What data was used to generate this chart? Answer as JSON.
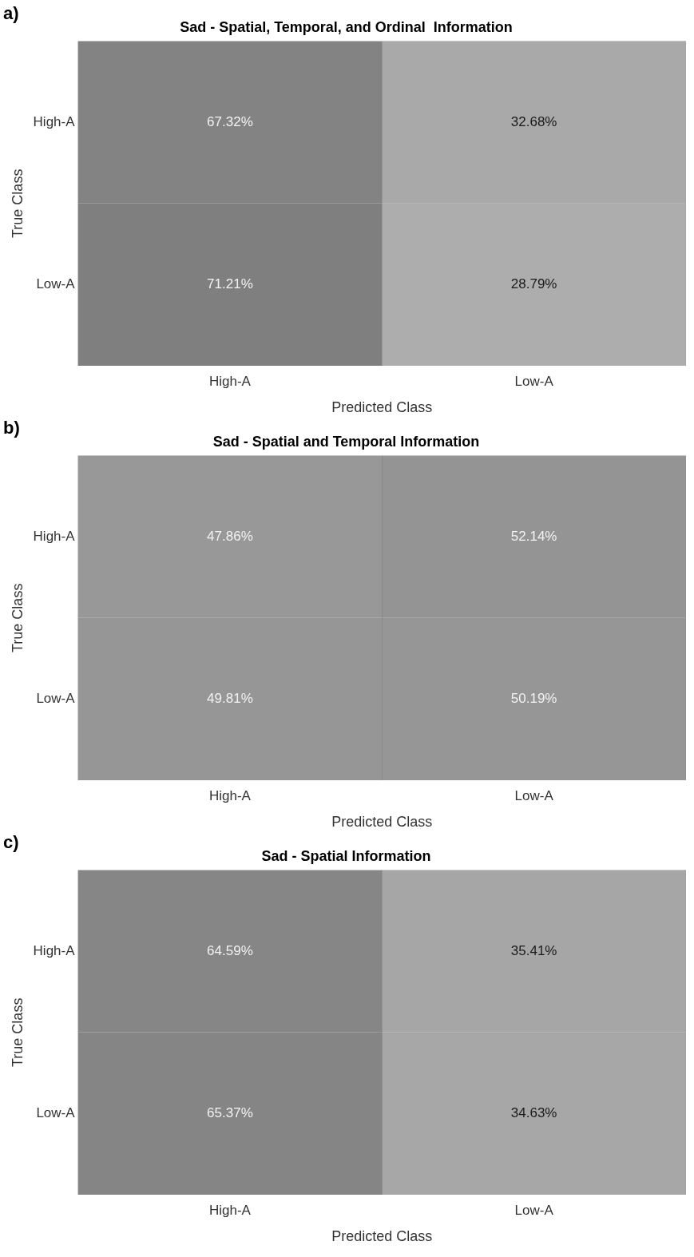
{
  "chart_data": [
    {
      "type": "heatmap",
      "title": "Sad - Spatial, Temporal, and Ordinal  Information",
      "xlabel": "Predicted Class",
      "ylabel": "True Class",
      "annotations": [
        "a)"
      ],
      "categories": [
        "High-A",
        "Low-A"
      ],
      "y_categories": [
        "High-A",
        "Low-A"
      ],
      "cells": [
        [
          67.32,
          32.68
        ],
        [
          71.21,
          28.79
        ]
      ],
      "cell_labels": [
        [
          "67.32%",
          "32.68%"
        ],
        [
          "71.21%",
          "28.79%"
        ]
      ]
    },
    {
      "type": "heatmap",
      "title": "Sad - Spatial and Temporal Information",
      "xlabel": "Predicted Class",
      "ylabel": "True Class",
      "annotations": [
        "b)"
      ],
      "categories": [
        "High-A",
        "Low-A"
      ],
      "y_categories": [
        "High-A",
        "Low-A"
      ],
      "cells": [
        [
          47.86,
          52.14
        ],
        [
          49.81,
          50.19
        ]
      ],
      "cell_labels": [
        [
          "47.86%",
          "52.14%"
        ],
        [
          "49.81%",
          "50.19%"
        ]
      ]
    },
    {
      "type": "heatmap",
      "title": "Sad - Spatial Information",
      "xlabel": "Predicted Class",
      "ylabel": "True Class",
      "annotations": [
        "c)"
      ],
      "categories": [
        "High-A",
        "Low-A"
      ],
      "y_categories": [
        "High-A",
        "Low-A"
      ],
      "cells": [
        [
          64.59,
          35.41
        ],
        [
          65.37,
          34.63
        ]
      ],
      "cell_labels": [
        [
          "64.59%",
          "35.41%"
        ],
        [
          "65.37%",
          "34.63%"
        ]
      ]
    }
  ]
}
